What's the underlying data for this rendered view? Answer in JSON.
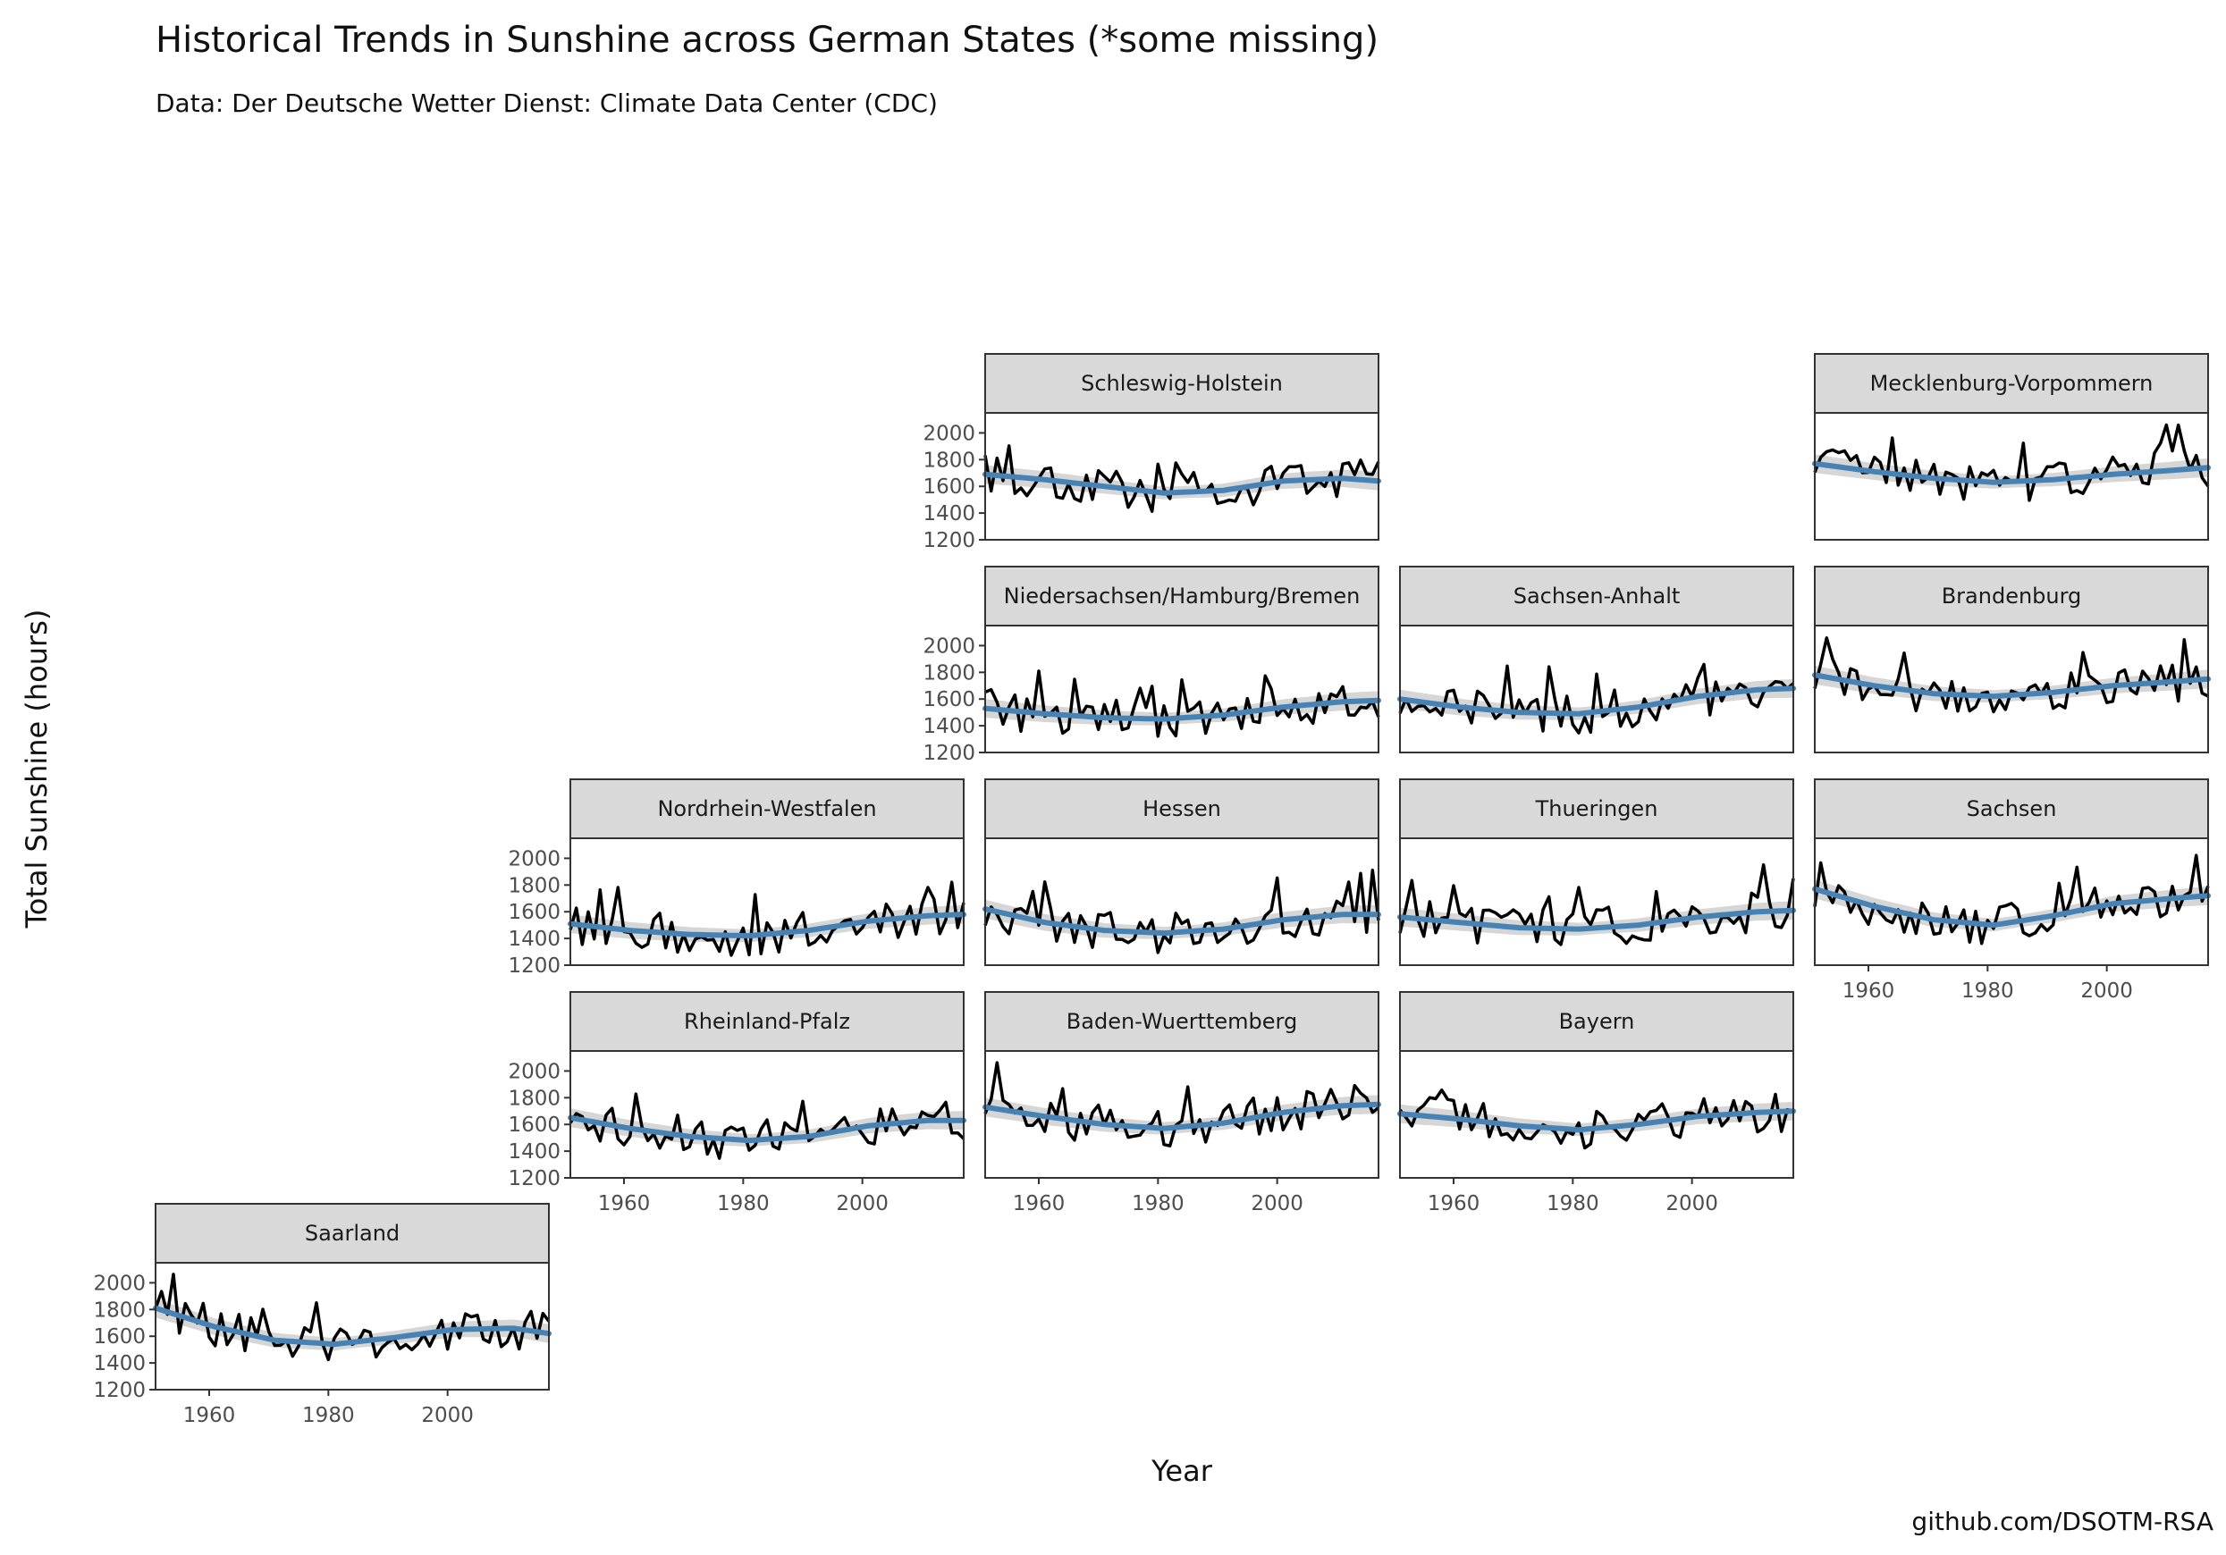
{
  "chart_data": {
    "type": "line",
    "title": "Historical Trends in Sunshine across German States (*some missing)",
    "subtitle": "Data: Der Deutsche Wetter Dienst: Climate Data Center (CDC)",
    "xlabel": "Year",
    "ylabel": "Total Sunshine (hours)",
    "caption": "github.com/DSOTM-RSA",
    "xlim": [
      1951,
      2017
    ],
    "ylim": [
      1200,
      2150
    ],
    "x_ticks": [
      1960,
      1980,
      2000
    ],
    "y_ticks": [
      1200,
      1400,
      1600,
      1800,
      2000
    ],
    "smooth": {
      "method": "loess",
      "color": "#4682b4",
      "band_color": "#cccccc"
    },
    "facets": [
      {
        "name": "Schleswig-Holstein",
        "smooth": [
          [
            1951,
            1690
          ],
          [
            1961,
            1650
          ],
          [
            1971,
            1600
          ],
          [
            1981,
            1550
          ],
          [
            1991,
            1570
          ],
          [
            2001,
            1640
          ],
          [
            2011,
            1660
          ],
          [
            2017,
            1640
          ]
        ]
      },
      {
        "name": "Mecklenburg-Vorpommern",
        "smooth": [
          [
            1951,
            1770
          ],
          [
            1961,
            1710
          ],
          [
            1971,
            1660
          ],
          [
            1981,
            1630
          ],
          [
            1991,
            1650
          ],
          [
            2001,
            1690
          ],
          [
            2011,
            1720
          ],
          [
            2017,
            1740
          ]
        ]
      },
      {
        "name": "Niedersachsen/Hamburg/Bremen",
        "smooth": [
          [
            1951,
            1530
          ],
          [
            1961,
            1490
          ],
          [
            1971,
            1460
          ],
          [
            1981,
            1450
          ],
          [
            1991,
            1480
          ],
          [
            2001,
            1540
          ],
          [
            2011,
            1580
          ],
          [
            2017,
            1590
          ]
        ]
      },
      {
        "name": "Sachsen-Anhalt",
        "smooth": [
          [
            1951,
            1600
          ],
          [
            1961,
            1540
          ],
          [
            1971,
            1500
          ],
          [
            1981,
            1490
          ],
          [
            1991,
            1540
          ],
          [
            2001,
            1620
          ],
          [
            2011,
            1670
          ],
          [
            2017,
            1680
          ]
        ]
      },
      {
        "name": "Brandenburg",
        "smooth": [
          [
            1951,
            1780
          ],
          [
            1961,
            1700
          ],
          [
            1971,
            1640
          ],
          [
            1981,
            1620
          ],
          [
            1991,
            1650
          ],
          [
            2001,
            1700
          ],
          [
            2011,
            1730
          ],
          [
            2017,
            1750
          ]
        ]
      },
      {
        "name": "Nordrhein-Westfalen",
        "smooth": [
          [
            1951,
            1510
          ],
          [
            1961,
            1460
          ],
          [
            1971,
            1430
          ],
          [
            1981,
            1420
          ],
          [
            1991,
            1460
          ],
          [
            2001,
            1530
          ],
          [
            2011,
            1570
          ],
          [
            2017,
            1580
          ]
        ]
      },
      {
        "name": "Hessen",
        "smooth": [
          [
            1951,
            1620
          ],
          [
            1961,
            1520
          ],
          [
            1971,
            1460
          ],
          [
            1981,
            1440
          ],
          [
            1991,
            1470
          ],
          [
            2001,
            1540
          ],
          [
            2011,
            1580
          ],
          [
            2017,
            1580
          ]
        ]
      },
      {
        "name": "Thueringen",
        "smooth": [
          [
            1951,
            1560
          ],
          [
            1961,
            1520
          ],
          [
            1971,
            1480
          ],
          [
            1981,
            1470
          ],
          [
            1991,
            1500
          ],
          [
            2001,
            1560
          ],
          [
            2011,
            1600
          ],
          [
            2017,
            1610
          ]
        ]
      },
      {
        "name": "Sachsen",
        "smooth": [
          [
            1951,
            1770
          ],
          [
            1961,
            1640
          ],
          [
            1971,
            1540
          ],
          [
            1981,
            1500
          ],
          [
            1991,
            1570
          ],
          [
            2001,
            1660
          ],
          [
            2011,
            1700
          ],
          [
            2017,
            1720
          ]
        ]
      },
      {
        "name": "Rheinland-Pfalz",
        "smooth": [
          [
            1951,
            1650
          ],
          [
            1961,
            1570
          ],
          [
            1971,
            1510
          ],
          [
            1981,
            1480
          ],
          [
            1991,
            1510
          ],
          [
            2001,
            1590
          ],
          [
            2011,
            1630
          ],
          [
            2017,
            1630
          ]
        ]
      },
      {
        "name": "Baden-Wuerttemberg",
        "smooth": [
          [
            1951,
            1730
          ],
          [
            1961,
            1660
          ],
          [
            1971,
            1600
          ],
          [
            1981,
            1570
          ],
          [
            1991,
            1610
          ],
          [
            2001,
            1690
          ],
          [
            2011,
            1740
          ],
          [
            2017,
            1750
          ]
        ]
      },
      {
        "name": "Bayern",
        "smooth": [
          [
            1951,
            1680
          ],
          [
            1961,
            1640
          ],
          [
            1971,
            1590
          ],
          [
            1981,
            1560
          ],
          [
            1991,
            1600
          ],
          [
            2001,
            1660
          ],
          [
            2011,
            1690
          ],
          [
            2017,
            1700
          ]
        ]
      },
      {
        "name": "Saarland",
        "smooth": [
          [
            1951,
            1810
          ],
          [
            1961,
            1670
          ],
          [
            1971,
            1570
          ],
          [
            1981,
            1540
          ],
          [
            1991,
            1590
          ],
          [
            2001,
            1650
          ],
          [
            2011,
            1660
          ],
          [
            2017,
            1620
          ]
        ]
      }
    ]
  }
}
